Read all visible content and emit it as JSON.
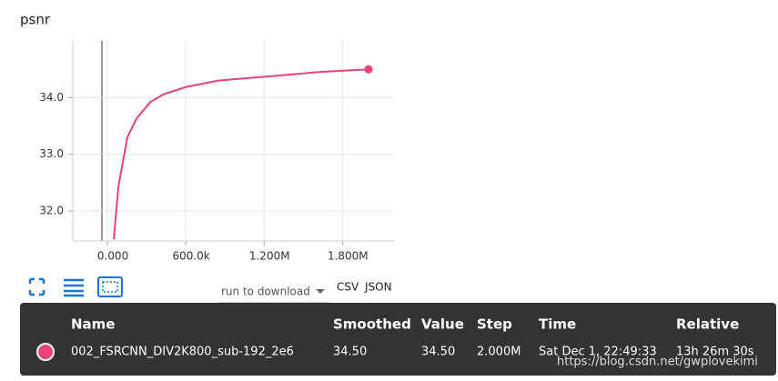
{
  "chart_data": {
    "type": "line",
    "title": "psnr",
    "x": [
      49000,
      84000,
      153000,
      223000,
      328000,
      432000,
      606000,
      850000,
      1268000,
      1617000,
      2000000
    ],
    "series": [
      {
        "name": "002_FSRCNN_DIV2K800_sub-192_2e6",
        "color": "#e8437a",
        "values": [
          31.5,
          32.43,
          33.3,
          33.63,
          33.92,
          34.06,
          34.19,
          34.3,
          34.38,
          34.45,
          34.5
        ]
      }
    ],
    "xlim": [
      -265000,
      2195000
    ],
    "ylim": [
      31.47,
      35.0
    ],
    "xticks": [
      {
        "value": 0,
        "label": "0.000"
      },
      {
        "value": 600000,
        "label": "600.0k"
      },
      {
        "value": 1200000,
        "label": "1.200M"
      },
      {
        "value": 1800000,
        "label": "1.800M"
      }
    ],
    "yticks": [
      {
        "value": 32,
        "label": "32.0"
      },
      {
        "value": 33,
        "label": "33.0"
      },
      {
        "value": 34,
        "label": "34.0"
      }
    ],
    "grid": true
  },
  "toolbar": {
    "run_select": "run to download",
    "csv": "CSV",
    "json": "JSON"
  },
  "tooltip": {
    "header": [
      "Name",
      "Smoothed",
      "Value",
      "Step",
      "Time",
      "Relative"
    ],
    "row": [
      "002_FSRCNN_DIV2K800_sub-192_2e6",
      "34.50",
      "34.50",
      "2.000M",
      "Sat Dec 1, 22:49:33",
      "13h 26m 30s"
    ]
  },
  "watermark": "https://blog.csdn.net/gwplovekimi"
}
